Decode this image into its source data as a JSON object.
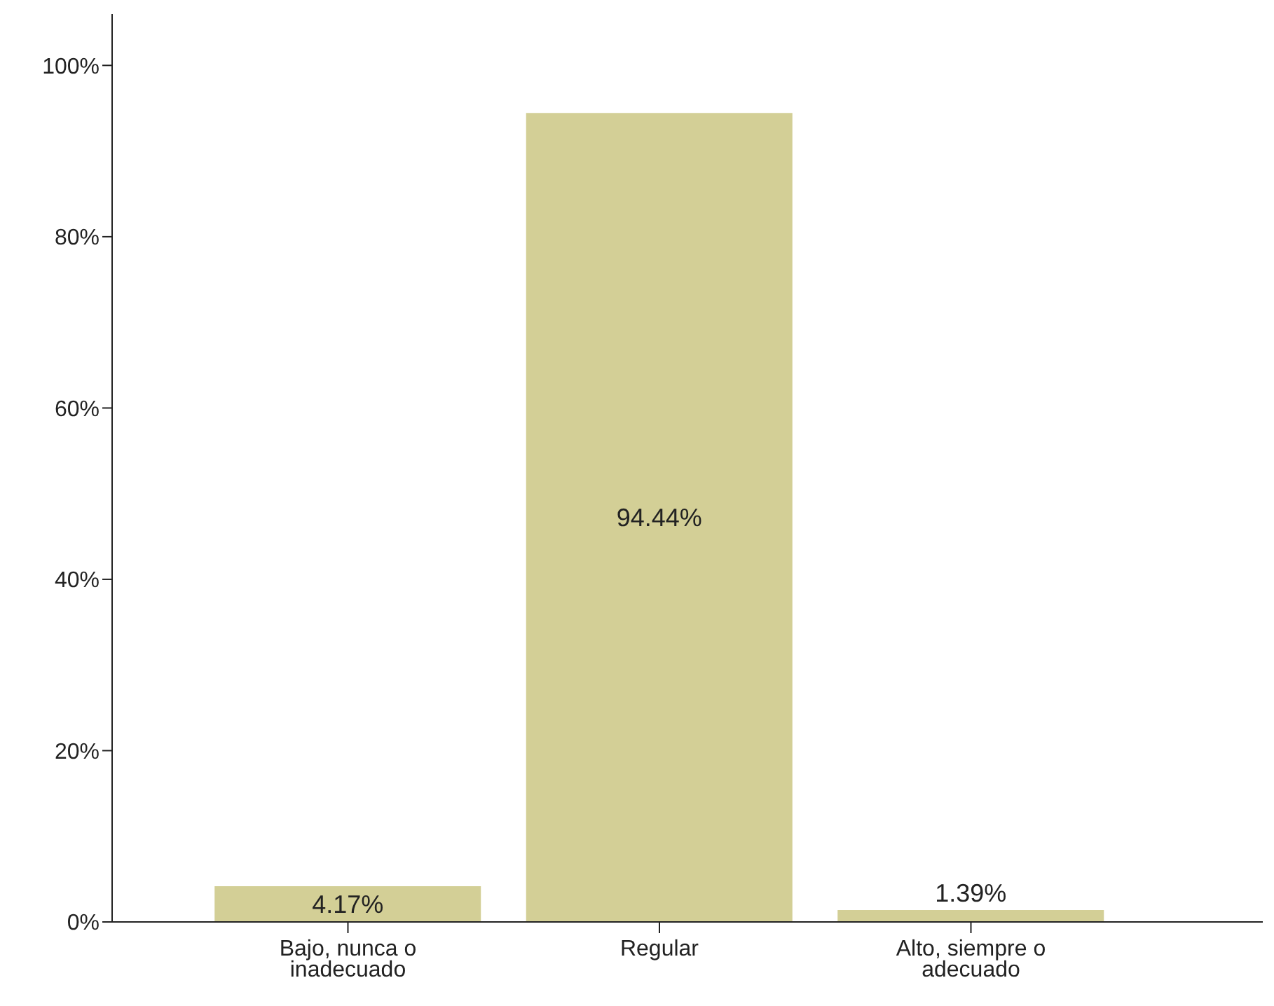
{
  "chart_data": {
    "type": "bar",
    "categories": [
      "Bajo, nunca o inadecuado",
      "Regular",
      "Alto, siempre o adecuado"
    ],
    "values": [
      4.17,
      94.44,
      1.39
    ],
    "value_labels": [
      "4.17%",
      "94.44%",
      "1.39%"
    ],
    "color": "#d3cf96",
    "ylim": [
      0,
      106
    ],
    "yticks": [
      {
        "value": 0,
        "label": "0%"
      },
      {
        "value": 20,
        "label": "20%"
      },
      {
        "value": 40,
        "label": "40%"
      },
      {
        "value": 60,
        "label": "60%"
      },
      {
        "value": 80,
        "label": "80%"
      },
      {
        "value": 100,
        "label": "100%"
      }
    ],
    "grid": false,
    "legend": false
  }
}
